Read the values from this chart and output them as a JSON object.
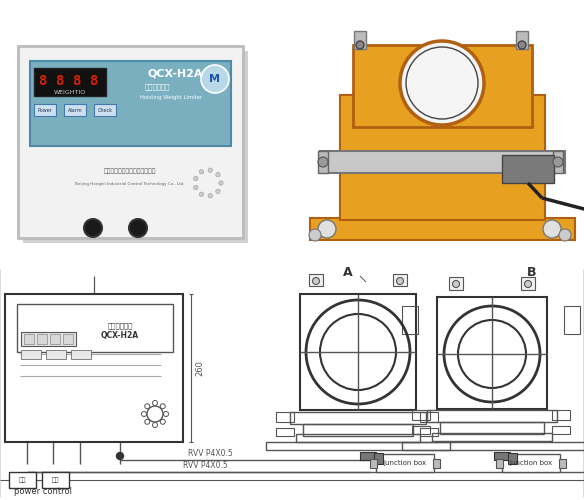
{
  "bg_color": "#ffffff",
  "line_color": "#555555",
  "dark_line": "#333333",
  "light_gray": "#aaaaaa",
  "mid_gray": "#888888",
  "yellow": "#e8a020",
  "wire_label1": "RVV P4X0.5",
  "wire_label2": "RVV P4X0.5",
  "junction_box_label": "junction box",
  "junction_box2_label": "junction box",
  "power_label": "power control",
  "dim_label": "260",
  "model_label": "QCX-H2A",
  "sub_label": "起重量限制器",
  "diag_model": "QCX-H2A",
  "diag_sub": "闸重量限制器",
  "diag_label_A": "A",
  "diag_label_B": "B"
}
